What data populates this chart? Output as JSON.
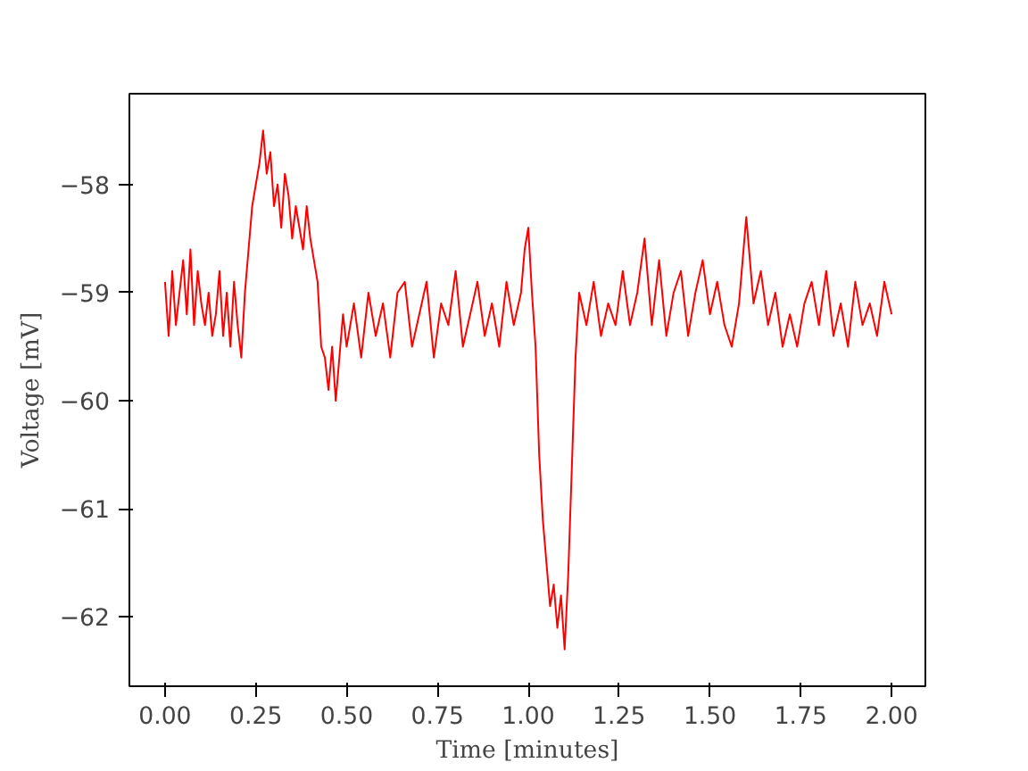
{
  "chart_data": {
    "type": "line",
    "xlabel": "Time [minutes]",
    "ylabel": "Voltage [mV]",
    "x": [
      0,
      0.01,
      0.02,
      0.03,
      0.04,
      0.05,
      0.06,
      0.07,
      0.08,
      0.09,
      0.1,
      0.11,
      0.12,
      0.13,
      0.14,
      0.15,
      0.16,
      0.17,
      0.18,
      0.19,
      0.2,
      0.21,
      0.22,
      0.23,
      0.24,
      0.25,
      0.26,
      0.27,
      0.28,
      0.29,
      0.3,
      0.31,
      0.32,
      0.33,
      0.34,
      0.35,
      0.36,
      0.37,
      0.38,
      0.39,
      0.4,
      0.41,
      0.42,
      0.43,
      0.44,
      0.45,
      0.46,
      0.47,
      0.48,
      0.49,
      0.5,
      0.52,
      0.54,
      0.56,
      0.58,
      0.6,
      0.62,
      0.64,
      0.66,
      0.68,
      0.7,
      0.72,
      0.74,
      0.76,
      0.78,
      0.8,
      0.82,
      0.84,
      0.86,
      0.88,
      0.9,
      0.92,
      0.94,
      0.96,
      0.98,
      0.99,
      1.0,
      1.01,
      1.02,
      1.03,
      1.04,
      1.05,
      1.06,
      1.07,
      1.08,
      1.09,
      1.1,
      1.11,
      1.12,
      1.13,
      1.14,
      1.16,
      1.18,
      1.2,
      1.22,
      1.24,
      1.26,
      1.28,
      1.3,
      1.32,
      1.34,
      1.36,
      1.38,
      1.4,
      1.42,
      1.44,
      1.46,
      1.48,
      1.5,
      1.52,
      1.54,
      1.56,
      1.58,
      1.6,
      1.62,
      1.64,
      1.66,
      1.68,
      1.7,
      1.72,
      1.74,
      1.76,
      1.78,
      1.8,
      1.82,
      1.84,
      1.86,
      1.88,
      1.9,
      1.92,
      1.94,
      1.96,
      1.98,
      2.0
    ],
    "series": [
      {
        "color": "#ff0000",
        "values": [
          -58.9,
          -59.4,
          -58.8,
          -59.3,
          -59.0,
          -58.7,
          -59.2,
          -58.6,
          -59.3,
          -58.8,
          -59.1,
          -59.3,
          -59.0,
          -59.4,
          -59.2,
          -58.8,
          -59.4,
          -59.0,
          -59.5,
          -58.9,
          -59.3,
          -59.6,
          -59.0,
          -58.6,
          -58.2,
          -58.0,
          -57.8,
          -57.5,
          -57.9,
          -57.7,
          -58.2,
          -58.0,
          -58.4,
          -57.9,
          -58.1,
          -58.5,
          -58.2,
          -58.4,
          -58.6,
          -58.2,
          -58.5,
          -58.7,
          -58.9,
          -59.5,
          -59.6,
          -59.9,
          -59.5,
          -60.0,
          -59.6,
          -59.2,
          -59.5,
          -59.1,
          -59.6,
          -59.0,
          -59.4,
          -59.1,
          -59.6,
          -59.0,
          -58.9,
          -59.5,
          -59.2,
          -58.9,
          -59.6,
          -59.1,
          -59.3,
          -58.8,
          -59.5,
          -59.2,
          -58.9,
          -59.4,
          -59.1,
          -59.5,
          -58.9,
          -59.3,
          -59.0,
          -58.6,
          -58.4,
          -59.0,
          -59.5,
          -60.5,
          -61.1,
          -61.5,
          -61.9,
          -61.7,
          -62.1,
          -61.8,
          -62.3,
          -61.6,
          -60.6,
          -59.6,
          -59.0,
          -59.3,
          -58.9,
          -59.4,
          -59.1,
          -59.3,
          -58.8,
          -59.3,
          -59.0,
          -58.5,
          -59.3,
          -58.7,
          -59.4,
          -59.0,
          -58.8,
          -59.4,
          -59.0,
          -58.7,
          -59.2,
          -58.9,
          -59.3,
          -59.5,
          -59.1,
          -58.3,
          -59.1,
          -58.8,
          -59.3,
          -59.0,
          -59.5,
          -59.2,
          -59.5,
          -59.1,
          -58.9,
          -59.3,
          -58.8,
          -59.4,
          -59.1,
          -59.5,
          -58.9,
          -59.3,
          -59.1,
          -59.4,
          -58.9,
          -59.2
        ]
      }
    ],
    "xlim": [
      -0.098,
      2.093
    ],
    "ylim": [
      -62.64,
      -57.16
    ],
    "xticks": [
      {
        "value": 0,
        "label": "0.00"
      },
      {
        "value": 0.25,
        "label": "0.25"
      },
      {
        "value": 0.5,
        "label": "0.50"
      },
      {
        "value": 0.75,
        "label": "0.75"
      },
      {
        "value": 1,
        "label": "1.00"
      },
      {
        "value": 1.25,
        "label": "1.25"
      },
      {
        "value": 1.5,
        "label": "1.50"
      },
      {
        "value": 1.75,
        "label": "1.75"
      },
      {
        "value": 2,
        "label": "2.00"
      }
    ],
    "yticks": [
      {
        "value": -62,
        "label": "−62"
      },
      {
        "value": -61,
        "label": "−61"
      },
      {
        "value": -60,
        "label": "−60"
      },
      {
        "value": -59,
        "label": "−59"
      },
      {
        "value": -58,
        "label": "−58"
      }
    ],
    "grid": false
  }
}
